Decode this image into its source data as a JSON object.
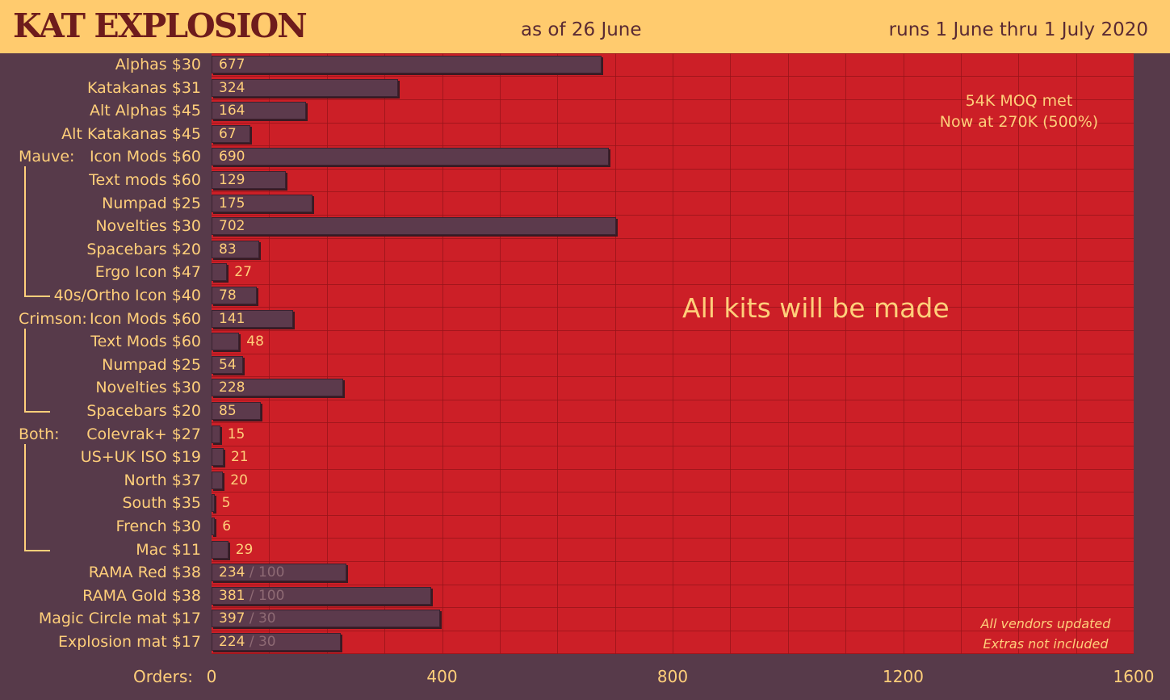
{
  "header": {
    "title": "KAT EXPLOSION",
    "as_of": "as of 26 June",
    "runs": "runs 1 June thru 1 July 2020"
  },
  "colors": {
    "header_bg": "#ffcb6e",
    "page_bg": "#573a4a",
    "plot_bg": "#cc1f27",
    "bar": "#5c3a4c",
    "text": "#ffcf7a"
  },
  "annotations": {
    "moq_line1": "54K MOQ met",
    "moq_line2": "Now at 270K (500%)",
    "all_kits": "All kits will be made",
    "vendors_line1": "All vendors updated",
    "vendors_line2": "Extras not included"
  },
  "groups": [
    {
      "label": "Mauve:",
      "start": 4,
      "end": 10
    },
    {
      "label": "Crimson:",
      "start": 11,
      "end": 15
    },
    {
      "label": "Both:",
      "start": 16,
      "end": 21
    }
  ],
  "chart_data": {
    "type": "bar",
    "orientation": "horizontal",
    "xlabel": "Orders:",
    "xlim": [
      0,
      1600
    ],
    "xticks": [
      0,
      400,
      800,
      1200,
      1600
    ],
    "grid": true,
    "categories": [
      "Alphas $30",
      "Katakanas $31",
      "Alt Alphas $45",
      "Alt Katakanas $45",
      "Icon Mods $60",
      "Text mods $60",
      "Numpad $25",
      "Novelties $30",
      "Spacebars $20",
      "Ergo Icon $47",
      "40s/Ortho Icon $40",
      "Icon Mods $60",
      "Text Mods $60",
      "Numpad $25",
      "Novelties $30",
      "Spacebars $20",
      "Colevrak+ $27",
      "US+UK ISO $19",
      "North $37",
      "South $35",
      "French $30",
      "Mac $11",
      "RAMA Red $38",
      "RAMA Gold $38",
      "Magic Circle mat $17",
      "Explosion mat $17"
    ],
    "values": [
      677,
      324,
      164,
      67,
      690,
      129,
      175,
      702,
      83,
      27,
      78,
      141,
      48,
      54,
      228,
      85,
      15,
      21,
      20,
      5,
      6,
      29,
      234,
      381,
      397,
      224
    ],
    "targets": [
      null,
      null,
      null,
      null,
      null,
      null,
      null,
      null,
      null,
      null,
      null,
      null,
      null,
      null,
      null,
      null,
      null,
      null,
      null,
      null,
      null,
      null,
      "/ 100",
      "/ 100",
      "/ 30",
      "/ 30"
    ]
  }
}
